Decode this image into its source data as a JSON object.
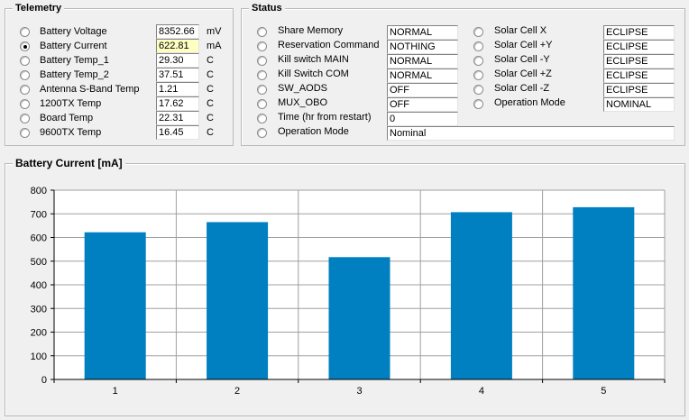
{
  "telemetry": {
    "title": "Telemetry",
    "items": [
      {
        "label": "Battery Voltage",
        "value": "8352.66",
        "unit": "mV",
        "selected": false
      },
      {
        "label": "Battery Current",
        "value": "622.81",
        "unit": "mA",
        "selected": true
      },
      {
        "label": "Battery Temp_1",
        "value": "29.30",
        "unit": "C",
        "selected": false
      },
      {
        "label": "Battery  Temp_2",
        "value": "37.51",
        "unit": "C",
        "selected": false
      },
      {
        "label": "Antenna S-Band Temp",
        "value": "1.21",
        "unit": "C",
        "selected": false
      },
      {
        "label": "1200TX Temp",
        "value": "17.62",
        "unit": "C",
        "selected": false
      },
      {
        "label": "Board Temp",
        "value": "22.31",
        "unit": "C",
        "selected": false
      },
      {
        "label": "9600TX Temp",
        "value": "16.45",
        "unit": "C",
        "selected": false
      }
    ]
  },
  "status": {
    "title": "Status",
    "left_items": [
      {
        "label": "Share Memory",
        "value": "NORMAL"
      },
      {
        "label": "Reservation Command",
        "value": "NOTHING"
      },
      {
        "label": "Kill switch MAIN",
        "value": "NORMAL"
      },
      {
        "label": "Kill Switch COM",
        "value": "NORMAL"
      },
      {
        "label": "SW_AODS",
        "value": "OFF"
      },
      {
        "label": "MUX_OBO",
        "value": "OFF"
      },
      {
        "label": "Time (hr from restart)",
        "value": "0"
      },
      {
        "label": "Operation Mode",
        "value": "Nominal"
      }
    ],
    "right_items": [
      {
        "label": "Solar Cell X",
        "value": "ECLIPSE"
      },
      {
        "label": "Solar Cell +Y",
        "value": "ECLIPSE"
      },
      {
        "label": "Solar Cell -Y",
        "value": "ECLIPSE"
      },
      {
        "label": "Solar Cell +Z",
        "value": "ECLIPSE"
      },
      {
        "label": "Solar Cell -Z",
        "value": "ECLIPSE"
      },
      {
        "label": "Operation Mode",
        "value": "NOMINAL"
      }
    ]
  },
  "chart_data": {
    "type": "bar",
    "title": "Battery Current [mA]",
    "categories": [
      "1",
      "2",
      "3",
      "4",
      "5"
    ],
    "values": [
      622,
      665,
      517,
      707,
      728
    ],
    "ylim": [
      0,
      800
    ],
    "yticks": [
      "0",
      "100",
      "200",
      "300",
      "400",
      "500",
      "600",
      "700",
      "800"
    ],
    "grid": true,
    "bar_color": "#0080c0"
  }
}
